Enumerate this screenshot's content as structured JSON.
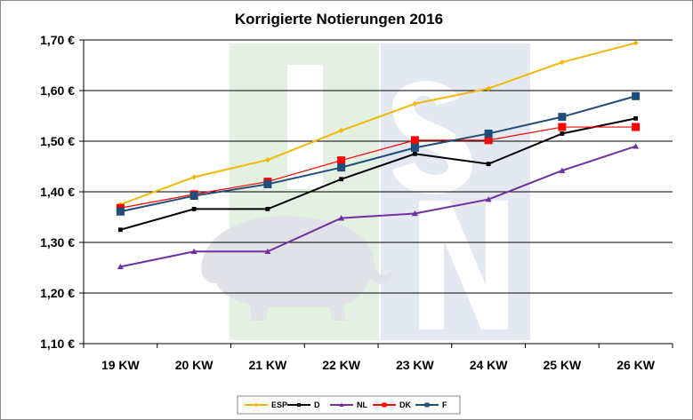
{
  "chart_data": {
    "type": "line",
    "title": "Korrigierte Notierungen 2016",
    "xlabel": "",
    "ylabel": "",
    "categories": [
      "19 KW",
      "20 KW",
      "21 KW",
      "22 KW",
      "23 KW",
      "24 KW",
      "25 KW",
      "26 KW"
    ],
    "ylim": [
      1.1,
      1.7
    ],
    "y_ticks": [
      1.1,
      1.2,
      1.3,
      1.4,
      1.5,
      1.6,
      1.7
    ],
    "y_tick_labels": [
      "1,10 €",
      "1,20 €",
      "1,30 €",
      "1,40 €",
      "1,50 €",
      "1,60 €",
      "1,70 €"
    ],
    "grid": "horizontal",
    "legend_position": "bottom",
    "series": [
      {
        "name": "ESP",
        "color": "#F2B705",
        "marker": "diamond",
        "values": [
          1.375,
          1.429,
          1.463,
          1.521,
          1.574,
          1.604,
          1.656,
          1.694
        ]
      },
      {
        "name": "D",
        "color": "#000000",
        "marker": "square-small",
        "values": [
          1.325,
          1.366,
          1.366,
          1.425,
          1.475,
          1.455,
          1.515,
          1.545
        ]
      },
      {
        "name": "NL",
        "color": "#7030A0",
        "marker": "triangle",
        "values": [
          1.252,
          1.282,
          1.282,
          1.348,
          1.357,
          1.385,
          1.442,
          1.49
        ]
      },
      {
        "name": "DK",
        "color": "#FF0000",
        "marker": "square",
        "values": [
          1.368,
          1.395,
          1.42,
          1.462,
          1.502,
          1.502,
          1.528,
          1.528
        ]
      },
      {
        "name": "F",
        "color": "#1F4E79",
        "marker": "square",
        "values": [
          1.361,
          1.392,
          1.415,
          1.448,
          1.487,
          1.515,
          1.548,
          1.589
        ]
      }
    ]
  }
}
